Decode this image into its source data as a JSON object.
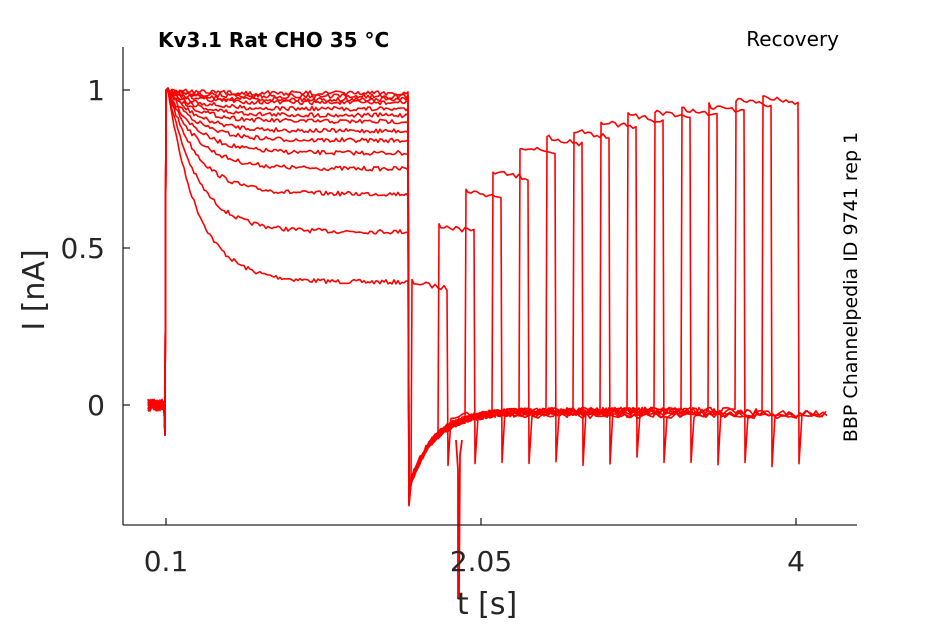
{
  "chart_data": {
    "type": "line",
    "title": "Kv3.1  Rat  CHO  35 °C",
    "protocol_label": "Recovery",
    "side_label": "BBP Channelpedia ID 9741 rep 1",
    "xlabel": "t [s]",
    "ylabel": "I [nA]",
    "xticks": [
      "0.1",
      "2.05",
      "4"
    ],
    "yticks": [
      "1",
      "0.5",
      "0"
    ],
    "series_color": "#ff0000",
    "grid": false,
    "legend": "none",
    "n_traces": 14,
    "baseline_nA": 0.0,
    "peak_nA": 1.0,
    "pulse1_sustained_nA": [
      0.39,
      0.55,
      0.67,
      0.75,
      0.8,
      0.84,
      0.87,
      0.9,
      0.92,
      0.94,
      0.96,
      0.97,
      0.98,
      0.99
    ],
    "pulse2_recovered_nA": [
      0.39,
      0.57,
      0.68,
      0.74,
      0.82,
      0.85,
      0.87,
      0.9,
      0.92,
      0.93,
      0.94,
      0.95,
      0.97,
      0.98
    ]
  }
}
